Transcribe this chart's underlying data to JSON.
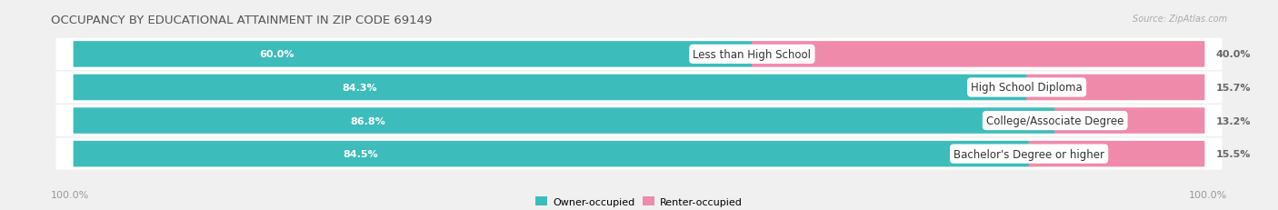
{
  "title": "OCCUPANCY BY EDUCATIONAL ATTAINMENT IN ZIP CODE 69149",
  "source": "Source: ZipAtlas.com",
  "categories": [
    "Less than High School",
    "High School Diploma",
    "College/Associate Degree",
    "Bachelor's Degree or higher"
  ],
  "owner_values": [
    60.0,
    84.3,
    86.8,
    84.5
  ],
  "renter_values": [
    40.0,
    15.7,
    13.2,
    15.5
  ],
  "owner_color": "#3DBCBC",
  "renter_color": "#F08AAA",
  "bg_color": "#f0f0f0",
  "row_bg_color": "#ffffff",
  "title_fontsize": 9.5,
  "source_fontsize": 7,
  "label_fontsize": 8.5,
  "pct_fontsize": 8,
  "legend_fontsize": 8,
  "axis_label_left": "100.0%",
  "axis_label_right": "100.0%"
}
